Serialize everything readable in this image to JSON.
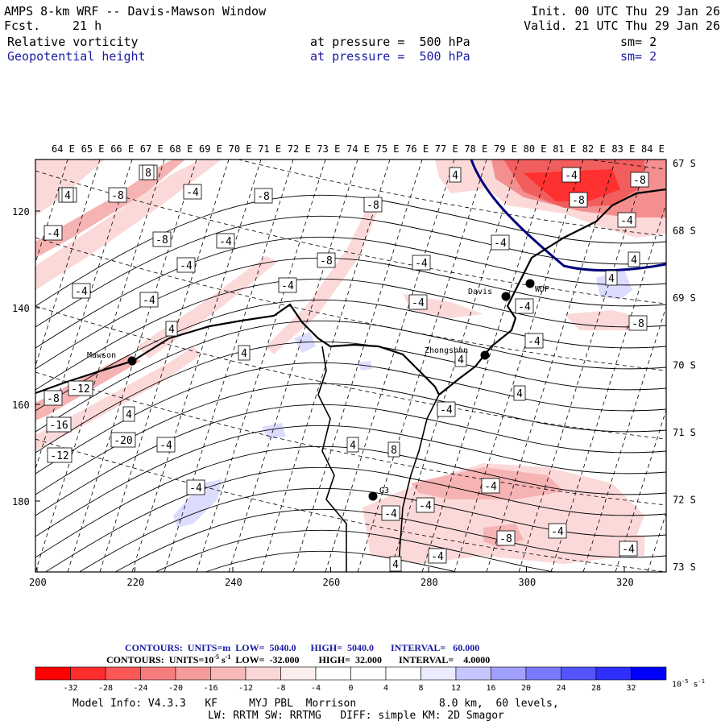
{
  "header": {
    "title": "AMPS 8-km WRF -- Davis-Mawson Window",
    "fcst_label": "Fcst.",
    "fcst_value": "21 h",
    "init": "Init. 00 UTC Thu 29 Jan 26",
    "valid": "Valid. 21 UTC Thu 29 Jan 26",
    "field1_name": "Relative vorticity",
    "field1_level": "at pressure =  500 hPa",
    "field1_sm": "sm= 2",
    "field2_name": "Geopotential height",
    "field2_level": "at pressure =  500 hPa",
    "field2_sm": "sm= 2"
  },
  "map": {
    "lon_labels": [
      "64 E",
      "65 E",
      "66 E",
      "67 E",
      "68 E",
      "69 E",
      "70 E",
      "71 E",
      "72 E",
      "73 E",
      "74 E",
      "75 E",
      "76 E",
      "77 E",
      "78 E",
      "79 E",
      "80 E",
      "81 E",
      "82 E",
      "83 E",
      "84 E"
    ],
    "lat_labels": [
      "67 S",
      "68 S",
      "69 S",
      "70 S",
      "71 S",
      "72 S",
      "73 S"
    ],
    "y_ticks": [
      "120",
      "140",
      "160",
      "180"
    ],
    "x_ticks": [
      "200",
      "220",
      "240",
      "260",
      "280",
      "300",
      "320"
    ],
    "stations": [
      {
        "name": "Mawson"
      },
      {
        "name": "Davis"
      },
      {
        "name": "Zhongshan"
      },
      {
        "name": "G3"
      },
      {
        "name": "WDP"
      }
    ],
    "contour_labels": [
      "-8",
      "-4",
      "-8",
      "-4",
      "-8",
      "-8",
      "-4",
      "-8",
      "-4",
      "-4",
      "-4",
      "-8",
      "-4",
      "-4",
      "-4",
      "4",
      "4",
      "4",
      "-8",
      "-12",
      "-16",
      "-20",
      "-12",
      "-4",
      "-4",
      "4",
      "8",
      "-4",
      "-4",
      "4",
      "-4",
      "-8",
      "-8",
      "-4",
      "-4",
      "4",
      "4",
      "-4",
      "4",
      "4",
      "-4",
      "-8",
      "-4",
      "-4",
      "-4",
      "-8",
      "-4",
      "-4",
      "-4",
      "4",
      "8",
      "4"
    ]
  },
  "colors": {
    "neg_strong": "#ff1a1a",
    "neg_mid": "#f48f8f",
    "neg_light": "#fbd9d9",
    "pos_light": "#dcdcff",
    "pos_strong": "#0000ff",
    "height_contour": "#00007a"
  },
  "legend": {
    "contour_line1": "CONTOURS:  UNITS=m  LOW=  5040.0      HIGH=  5040.0       INTERVAL=   60.000",
    "contour_line2_a": "CONTOURS:  UNITS=10",
    "contour_line2_sup": "-5",
    "contour_line2_b": " s",
    "contour_line2_sup2": "-1",
    "contour_line2_c": "  LOW=  -32.000        HIGH=  32.000       INTERVAL=    4.0000",
    "colorbar_values": [
      "-32",
      "-28",
      "-24",
      "-20",
      "-16",
      "-12",
      "-8",
      "-4",
      "0",
      "4",
      "8",
      "12",
      "16",
      "20",
      "24",
      "28",
      "32"
    ],
    "colorbar_unit_a": "10",
    "colorbar_unit_sup": "-5",
    "colorbar_unit_b": " s",
    "colorbar_unit_sup2": "-1"
  },
  "footer": {
    "line1_a": "Model Info: V4.3.3   KF     MYJ PBL  Morrison",
    "line1_b": "8.0 km,  60 levels,",
    "line2": "LW: RRTM SW: RRTMG   DIFF: simple KM: 2D Smagor"
  }
}
